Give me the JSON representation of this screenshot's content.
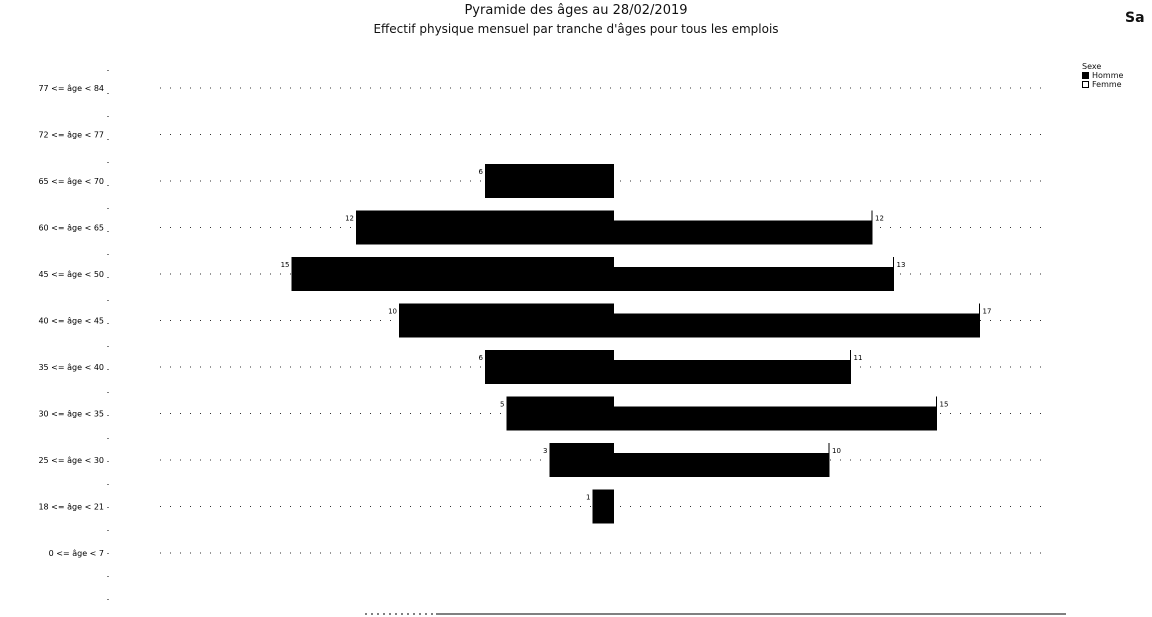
{
  "title": "Pyramide des âges au 28/02/2019",
  "subtitle": "Effectif physique mensuel par tranche d'âges pour tous les emplois",
  "corner_label": "Sa",
  "legend": {
    "header": "Sexe",
    "items": [
      {
        "label": "Homme",
        "color": "#000000"
      },
      {
        "label": "Femme",
        "color": "#000000"
      }
    ]
  },
  "chart_data": {
    "type": "bar",
    "orientation": "horizontal",
    "categories": [
      "77 <= âge < 84",
      "72 <= âge < 77",
      "65 <= âge < 70",
      "60 <= âge < 65",
      "45 <= âge < 50",
      "40 <= âge < 45",
      "35 <= âge < 40",
      "30 <= âge < 35",
      "25 <= âge < 30",
      "18 <= âge < 21",
      "0 <= âge < 7"
    ],
    "series": [
      {
        "name": "Homme",
        "values": [
          0,
          0,
          6,
          12,
          15,
          10,
          6,
          5,
          3,
          1,
          0
        ]
      },
      {
        "name": "Femme",
        "values": [
          0,
          0,
          0,
          12,
          13,
          17,
          11,
          15,
          10,
          0,
          0
        ]
      }
    ],
    "data_labels_homme": [
      "",
      "",
      "6",
      "12",
      "15",
      "10",
      "6",
      "5",
      "3",
      "1",
      ""
    ],
    "data_labels_femme": [
      "",
      "",
      "",
      "12",
      "13",
      "17",
      "11",
      "15",
      "10",
      "",
      ""
    ],
    "bar_color": "#000000",
    "grid": false,
    "legend_position": "top-right"
  }
}
